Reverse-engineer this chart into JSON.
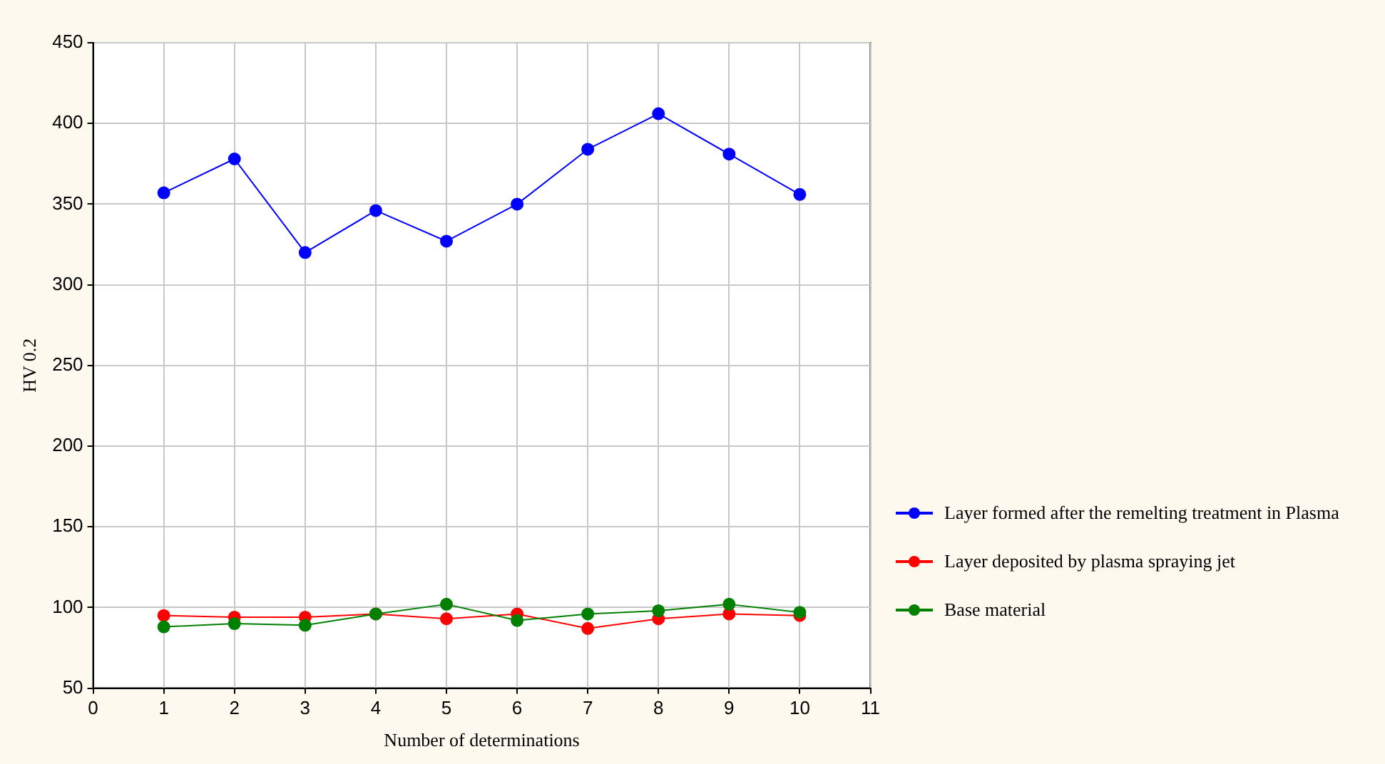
{
  "chart_data": {
    "type": "line",
    "xlabel": "Number of determinations",
    "ylabel": "HV 0.2",
    "x": [
      1,
      2,
      3,
      4,
      5,
      6,
      7,
      8,
      9,
      10
    ],
    "xlim": [
      0,
      11
    ],
    "xticks": [
      0,
      1,
      2,
      3,
      4,
      5,
      6,
      7,
      8,
      9,
      10,
      11
    ],
    "ylim": [
      50,
      450
    ],
    "yticks": [
      50,
      100,
      150,
      200,
      250,
      300,
      350,
      400,
      450
    ],
    "grid": true,
    "legend": "right",
    "marker": "circle",
    "line_style": "solid",
    "series": [
      {
        "name": "Layer formed after the remelting treatment in Plasma",
        "color": "#0000ff",
        "values": [
          357,
          378,
          320,
          346,
          327,
          350,
          384,
          406,
          381,
          356
        ]
      },
      {
        "name": "Layer deposited by plasma spraying jet",
        "color": "#ff0000",
        "values": [
          95,
          94,
          94,
          96,
          93,
          96,
          87,
          93,
          96,
          95
        ]
      },
      {
        "name": "Base material",
        "color": "#008000",
        "values": [
          88,
          90,
          89,
          96,
          102,
          92,
          96,
          98,
          102,
          97
        ]
      }
    ]
  }
}
